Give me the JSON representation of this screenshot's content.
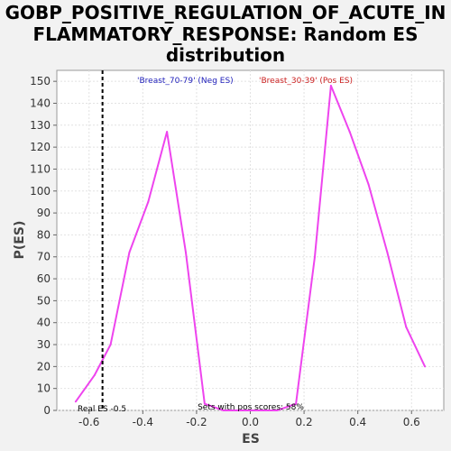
{
  "chart_data": {
    "type": "line",
    "title_lines": [
      "GOBP_POSITIVE_REGULATION_OF_ACUTE_IN",
      "FLAMMATORY_RESPONSE: Random ES",
      "distribution"
    ],
    "xlabel": "ES",
    "ylabel": "P(ES)",
    "xlim": [
      -0.72,
      0.72
    ],
    "ylim": [
      0,
      155
    ],
    "x_ticks": [
      -0.6,
      -0.4,
      -0.2,
      0.0,
      0.2,
      0.4,
      0.6
    ],
    "x_tick_labels": [
      "-0.6",
      "-0.4",
      "-0.2",
      "0.0",
      "0.2",
      "0.4",
      "0.6"
    ],
    "y_ticks": [
      0,
      10,
      20,
      30,
      40,
      50,
      60,
      70,
      80,
      90,
      100,
      110,
      120,
      130,
      140,
      150
    ],
    "y_tick_labels": [
      "0",
      "10",
      "20",
      "30",
      "40",
      "50",
      "60",
      "70",
      "80",
      "90",
      "100",
      "110",
      "120",
      "130",
      "140",
      "150"
    ],
    "grid": true,
    "series": [
      {
        "color": "#ee44ee",
        "x": [
          -0.65,
          -0.58,
          -0.52,
          -0.45,
          -0.38,
          -0.31,
          -0.24,
          -0.17,
          -0.1,
          -0.03,
          0.03,
          0.1,
          0.17,
          0.24,
          0.3,
          0.37,
          0.44,
          0.51,
          0.58,
          0.65
        ],
        "y": [
          4,
          16,
          30,
          72,
          95,
          127,
          72,
          3,
          0,
          0,
          0,
          0,
          3,
          70,
          148,
          127,
          103,
          72,
          38,
          20
        ]
      }
    ],
    "real_es": {
      "x": -0.55,
      "label": "Real ES -0.5",
      "color": "#000000"
    },
    "legend": [
      {
        "text": "'Breast_70-79' (Neg ES)",
        "color": "#2222bb"
      },
      {
        "text": "'Breast_30-39' (Pos ES)",
        "color": "#cc2222"
      }
    ],
    "footnote": "Sets with pos scores: 58%"
  }
}
